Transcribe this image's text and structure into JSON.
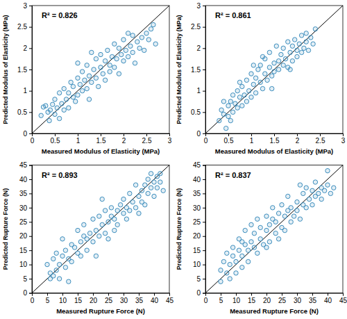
{
  "chart_data": [
    {
      "type": "scatter",
      "annotation": "R² = 0.826",
      "x_label": "Measured Modulus of Elasticity (MPa)",
      "y_label": "Predicted Modulus of Elasticity (MPa)",
      "xlim": [
        0,
        3
      ],
      "ylim": [
        0,
        3
      ],
      "xticks": [
        0,
        0.5,
        1,
        1.5,
        2,
        2.5,
        3
      ],
      "yticks": [
        0,
        0.5,
        1,
        1.5,
        2,
        2.5,
        3
      ],
      "color": "#3b8dbd",
      "marker": "circle",
      "reference_line": {
        "x": [
          0,
          3
        ],
        "y": [
          0,
          3
        ]
      },
      "x": [
        0.2,
        0.3,
        0.35,
        0.38,
        0.4,
        0.45,
        0.5,
        0.5,
        0.55,
        0.6,
        0.6,
        0.65,
        0.7,
        0.7,
        0.75,
        0.8,
        0.8,
        0.85,
        0.9,
        0.9,
        0.95,
        1.0,
        1.0,
        1.05,
        1.1,
        1.1,
        1.15,
        1.2,
        1.2,
        1.25,
        1.3,
        1.3,
        1.35,
        1.4,
        1.4,
        1.45,
        1.5,
        1.5,
        1.55,
        1.6,
        1.6,
        1.65,
        1.7,
        1.7,
        1.75,
        1.8,
        1.8,
        1.85,
        1.9,
        1.9,
        1.95,
        2.0,
        2.0,
        2.05,
        2.1,
        2.1,
        2.15,
        2.2,
        2.2,
        2.25,
        2.3,
        2.35,
        2.4,
        2.45,
        2.5,
        2.55,
        2.6,
        2.65,
        2.7,
        0.25,
        1.0,
        1.25
      ],
      "values": [
        0.42,
        0.65,
        0.5,
        0.3,
        0.55,
        0.68,
        0.45,
        0.8,
        0.6,
        0.35,
        0.95,
        0.7,
        0.55,
        1.05,
        0.8,
        0.95,
        0.6,
        1.2,
        0.85,
        1.1,
        0.75,
        1.3,
        0.9,
        1.15,
        1.0,
        1.45,
        1.25,
        1.6,
        1.05,
        1.35,
        1.9,
        1.2,
        1.5,
        1.3,
        1.75,
        1.1,
        1.55,
        1.85,
        1.4,
        1.7,
        1.25,
        1.95,
        1.6,
        1.45,
        1.8,
        2.1,
        1.55,
        1.75,
        2.0,
        1.4,
        1.85,
        2.2,
        1.7,
        1.95,
        2.35,
        1.8,
        2.05,
        1.9,
        2.3,
        1.65,
        2.15,
        2.0,
        2.25,
        1.95,
        2.35,
        2.2,
        2.45,
        2.55,
        2.1,
        0.62,
        1.65,
        0.8
      ]
    },
    {
      "type": "scatter",
      "annotation": "R² = 0.861",
      "x_label": "Measured Modulus of Elasticity (MPa)",
      "y_label": "Predicted Modulus of Elasticity (MPa)",
      "xlim": [
        0,
        3
      ],
      "ylim": [
        0,
        3
      ],
      "xticks": [
        0,
        0.5,
        1,
        1.5,
        2,
        2.5,
        3
      ],
      "yticks": [
        0,
        0.5,
        1,
        1.5,
        2,
        2.5,
        3
      ],
      "color": "#3b8dbd",
      "marker": "circle",
      "reference_line": {
        "x": [
          0,
          3
        ],
        "y": [
          0,
          3
        ]
      },
      "x": [
        0.3,
        0.35,
        0.4,
        0.45,
        0.5,
        0.5,
        0.55,
        0.6,
        0.6,
        0.65,
        0.7,
        0.7,
        0.75,
        0.8,
        0.8,
        0.85,
        0.9,
        0.9,
        0.95,
        1.0,
        1.0,
        1.05,
        1.1,
        1.1,
        1.15,
        1.2,
        1.2,
        1.25,
        1.3,
        1.3,
        1.35,
        1.4,
        1.4,
        1.45,
        1.5,
        1.5,
        1.55,
        1.6,
        1.6,
        1.65,
        1.7,
        1.7,
        1.75,
        1.8,
        1.8,
        1.85,
        1.9,
        1.9,
        1.95,
        2.0,
        2.0,
        2.05,
        2.1,
        2.1,
        2.15,
        2.2,
        2.25,
        2.3,
        2.35,
        2.4,
        0.4,
        0.75,
        1.05,
        1.45,
        1.85,
        2.2,
        0.55,
        1.25
      ],
      "values": [
        0.3,
        0.55,
        0.45,
        0.12,
        0.65,
        0.4,
        0.75,
        0.5,
        0.9,
        0.7,
        0.6,
        1.0,
        0.85,
        0.65,
        1.1,
        0.9,
        1.25,
        0.75,
        1.0,
        1.4,
        0.85,
        1.15,
        1.3,
        0.95,
        1.5,
        1.2,
        1.6,
        1.05,
        1.4,
        1.75,
        1.25,
        1.55,
        1.9,
        1.35,
        1.65,
        1.45,
        2.05,
        1.7,
        1.5,
        1.85,
        1.6,
        2.0,
        1.75,
        1.55,
        2.15,
        1.9,
        2.05,
        1.7,
        2.2,
        1.95,
        1.8,
        2.1,
        2.3,
        1.9,
        2.0,
        2.15,
        1.95,
        2.25,
        2.1,
        2.45,
        0.75,
        1.2,
        1.6,
        1.05,
        1.5,
        2.35,
        0.3,
        1.8
      ]
    },
    {
      "type": "scatter",
      "annotation": "R² = 0.893",
      "x_label": "Measured Rupture Force (N)",
      "y_label": "Predicted Rupture Force (N)",
      "xlim": [
        0,
        45
      ],
      "ylim": [
        0,
        45
      ],
      "xticks": [
        0,
        5,
        10,
        15,
        20,
        25,
        30,
        35,
        40,
        45
      ],
      "yticks": [
        0,
        5,
        10,
        15,
        20,
        25,
        30,
        35,
        40,
        45
      ],
      "color": "#3b8dbd",
      "marker": "circle",
      "reference_line": {
        "x": [
          0,
          45
        ],
        "y": [
          0,
          45
        ]
      },
      "x": [
        5,
        6,
        6,
        7,
        7,
        8,
        8,
        9,
        9,
        10,
        10,
        11,
        11,
        12,
        12,
        13,
        13,
        14,
        15,
        15,
        16,
        16,
        17,
        17,
        18,
        18,
        19,
        20,
        20,
        21,
        21,
        22,
        22,
        23,
        23,
        24,
        24,
        25,
        25,
        26,
        26,
        27,
        27,
        28,
        28,
        29,
        30,
        30,
        31,
        31,
        32,
        32,
        33,
        34,
        34,
        35,
        35,
        36,
        36,
        37,
        37,
        38,
        38,
        39,
        39,
        40,
        40,
        41,
        41,
        42,
        43,
        42
      ],
      "values": [
        10,
        5,
        7,
        12,
        6,
        8,
        14,
        10,
        5,
        13,
        19,
        9,
        15,
        12,
        4,
        17,
        11,
        16,
        14,
        22,
        18,
        13,
        20,
        24,
        19,
        15,
        21,
        26,
        18,
        22,
        13,
        20,
        27,
        24,
        33,
        21,
        29,
        25,
        19,
        27,
        30,
        22,
        26,
        29,
        24,
        31,
        28,
        33,
        30,
        26,
        35,
        29,
        32,
        38,
        30,
        34,
        28,
        36,
        32,
        38,
        31,
        40,
        35,
        37,
        42,
        39,
        34,
        41,
        37,
        39,
        36,
        42
      ]
    },
    {
      "type": "scatter",
      "annotation": "R² = 0.837",
      "x_label": "Measured Rupture Force (N)",
      "y_label": "Predicted Rupture Force (N)",
      "xlim": [
        0,
        45
      ],
      "ylim": [
        0,
        45
      ],
      "xticks": [
        0,
        5,
        10,
        15,
        20,
        25,
        30,
        35,
        40,
        45
      ],
      "yticks": [
        0,
        5,
        10,
        15,
        20,
        25,
        30,
        35,
        40,
        45
      ],
      "color": "#3b8dbd",
      "marker": "circle",
      "reference_line": {
        "x": [
          0,
          45
        ],
        "y": [
          0,
          45
        ]
      },
      "x": [
        5,
        5,
        6,
        7,
        7,
        8,
        8,
        9,
        9,
        10,
        10,
        11,
        11,
        12,
        12,
        13,
        13,
        14,
        14,
        15,
        15,
        16,
        16,
        17,
        17,
        18,
        18,
        19,
        20,
        20,
        21,
        21,
        22,
        22,
        23,
        23,
        24,
        24,
        25,
        25,
        26,
        26,
        27,
        27,
        28,
        28,
        29,
        30,
        30,
        31,
        31,
        32,
        32,
        33,
        33,
        34,
        35,
        35,
        36,
        36,
        37,
        38,
        38,
        39,
        40,
        40,
        41,
        42,
        20,
        12
      ],
      "values": [
        8,
        4,
        11,
        7,
        14,
        10,
        5,
        13,
        16,
        11,
        7,
        15,
        19,
        13,
        9,
        17,
        22,
        15,
        11,
        18,
        24,
        16,
        21,
        14,
        26,
        19,
        23,
        17,
        22,
        27,
        18,
        24,
        26,
        30,
        21,
        25,
        28,
        19,
        23,
        31,
        27,
        22,
        29,
        34,
        25,
        30,
        27,
        32,
        29,
        38,
        26,
        31,
        35,
        30,
        37,
        33,
        36,
        31,
        34,
        39,
        35,
        37,
        33,
        36,
        43,
        38,
        35,
        37,
        16,
        18
      ]
    }
  ]
}
